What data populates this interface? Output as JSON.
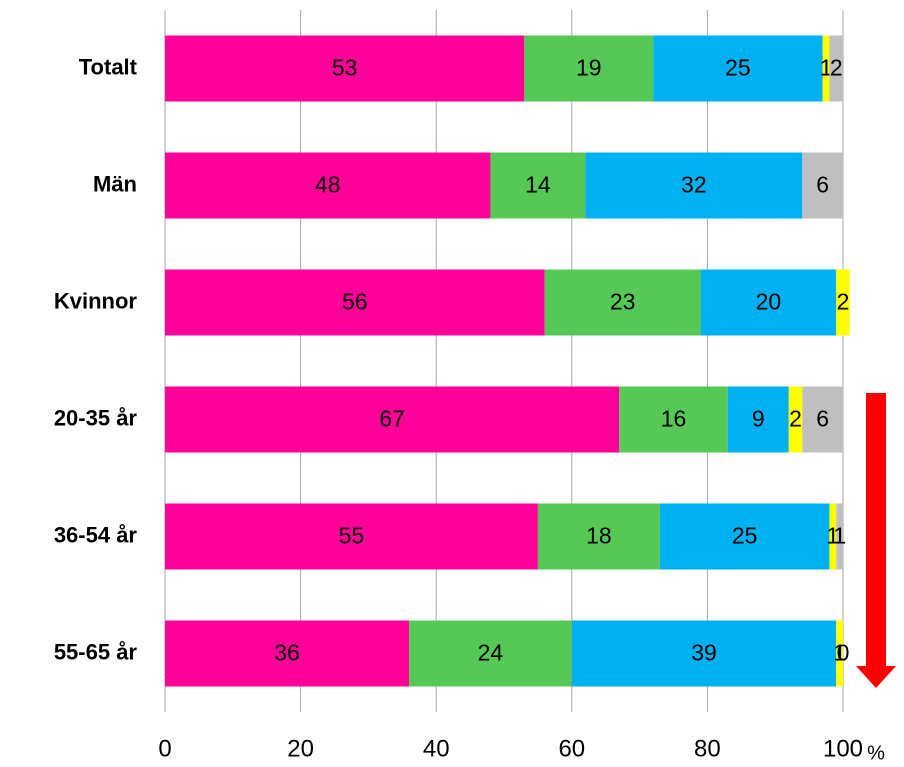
{
  "chart_data": {
    "type": "stacked_bar_horizontal",
    "categories": [
      "Totalt",
      "Män",
      "Kvinnor",
      "20-35 år",
      "36-54 år",
      "55-65 år"
    ],
    "series": [
      {
        "color": "#ff0099",
        "values": [
          53,
          48,
          56,
          67,
          55,
          36
        ]
      },
      {
        "color": "#55c855",
        "values": [
          19,
          14,
          23,
          16,
          18,
          24
        ]
      },
      {
        "color": "#00b0f0",
        "values": [
          25,
          32,
          20,
          9,
          25,
          39
        ]
      },
      {
        "color": "#ffff00",
        "values": [
          1,
          null,
          2,
          2,
          1,
          1
        ]
      },
      {
        "color": "#bfbfbf",
        "values": [
          2,
          6,
          null,
          6,
          1,
          0
        ]
      }
    ],
    "xlim": [
      0,
      100
    ],
    "xticks": [
      0,
      20,
      40,
      60,
      80,
      100
    ],
    "xlabel": "%",
    "grid": true
  }
}
